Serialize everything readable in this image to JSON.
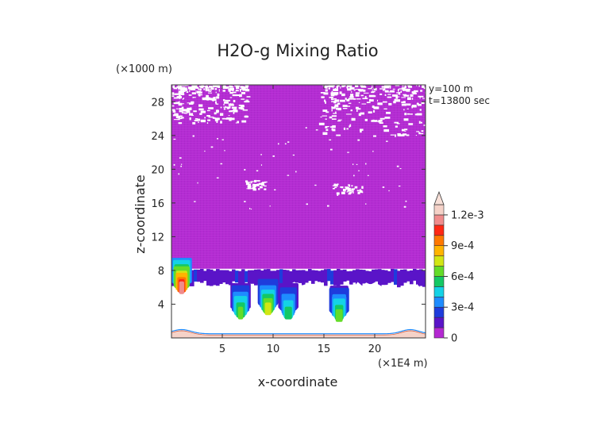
{
  "chart_data": {
    "type": "heatmap",
    "title": "H2O-g Mixing Ratio",
    "xlabel": "x-coordinate",
    "ylabel": "z-coordinate",
    "x_unit": "(×1E4 m)",
    "y_unit": "(×1000 m)",
    "annotation": [
      "y=100 m",
      "t=13800 sec"
    ],
    "xlim": [
      0,
      25
    ],
    "ylim": [
      0,
      30
    ],
    "x_ticks": [
      5,
      10,
      15,
      20
    ],
    "y_ticks": [
      4,
      8,
      12,
      16,
      20,
      24,
      28
    ],
    "colorbar": {
      "min": 0,
      "max": 0.0013,
      "tick_labels": [
        "0",
        "3e-4",
        "6e-4",
        "9e-4",
        "1.2e-3"
      ],
      "tick_values": [
        0,
        0.0003,
        0.0006,
        0.0009,
        0.0012
      ],
      "levels": [
        {
          "min": 0,
          "max": 0.0001,
          "color": "#b428d2"
        },
        {
          "min": 0.0001,
          "max": 0.0002,
          "color": "#5a14c8"
        },
        {
          "min": 0.0002,
          "max": 0.0003,
          "color": "#1e3cdc"
        },
        {
          "min": 0.0003,
          "max": 0.0004,
          "color": "#1e8cff"
        },
        {
          "min": 0.0004,
          "max": 0.0005,
          "color": "#14d2e6"
        },
        {
          "min": 0.0005,
          "max": 0.0006,
          "color": "#14c864"
        },
        {
          "min": 0.0006,
          "max": 0.0007,
          "color": "#64dc28"
        },
        {
          "min": 0.0007,
          "max": 0.0008,
          "color": "#d2e614"
        },
        {
          "min": 0.0008,
          "max": 0.0009,
          "color": "#ffb400"
        },
        {
          "min": 0.0009,
          "max": 0.001,
          "color": "#ff7800"
        },
        {
          "min": 0.001,
          "max": 0.0011,
          "color": "#ff2814"
        },
        {
          "min": 0.0011,
          "max": 0.0012,
          "color": "#f08c8c"
        },
        {
          "min": 0.0012,
          "max": 0.0013,
          "color": "#f5d2c8"
        }
      ]
    },
    "field": {
      "upper_layer": {
        "z_range": [
          8.2,
          30
        ],
        "value": 3e-05,
        "color": "#b428d2"
      },
      "sparse_upper_patches": [
        {
          "x_range": [
            0,
            7.5
          ],
          "z_range": [
            25.5,
            30
          ],
          "value": 0
        },
        {
          "x_range": [
            14.5,
            25
          ],
          "z_range": [
            24,
            30
          ],
          "value": 0
        },
        {
          "x_range": [
            7.2,
            9.2
          ],
          "z_range": [
            17.7,
            18.8
          ],
          "value": 0
        },
        {
          "x_range": [
            15.8,
            18.8
          ],
          "z_range": [
            17.1,
            18.3
          ],
          "value": 0
        }
      ],
      "mid_band": {
        "z_range": [
          6.8,
          8.2
        ],
        "value": 0.00015
      },
      "plumes": [
        {
          "x_center": 1.0,
          "z_top": 9.5,
          "peak_value": 0.0011
        },
        {
          "x_center": 6.8,
          "z_top": 6.5,
          "peak_value": 0.0006
        },
        {
          "x_center": 9.5,
          "z_top": 7.0,
          "peak_value": 0.0007
        },
        {
          "x_center": 11.5,
          "z_top": 6.5,
          "peak_value": 0.0005
        },
        {
          "x_center": 16.5,
          "z_top": 6.2,
          "peak_value": 0.0006
        }
      ],
      "dry_region": {
        "x_range": [
          0,
          25
        ],
        "z_range": [
          0.8,
          6.5
        ],
        "value": 0
      },
      "surface_layer": {
        "z_range": [
          0,
          0.9
        ],
        "value": 0.00125,
        "color": "#f5d2c8"
      }
    }
  }
}
